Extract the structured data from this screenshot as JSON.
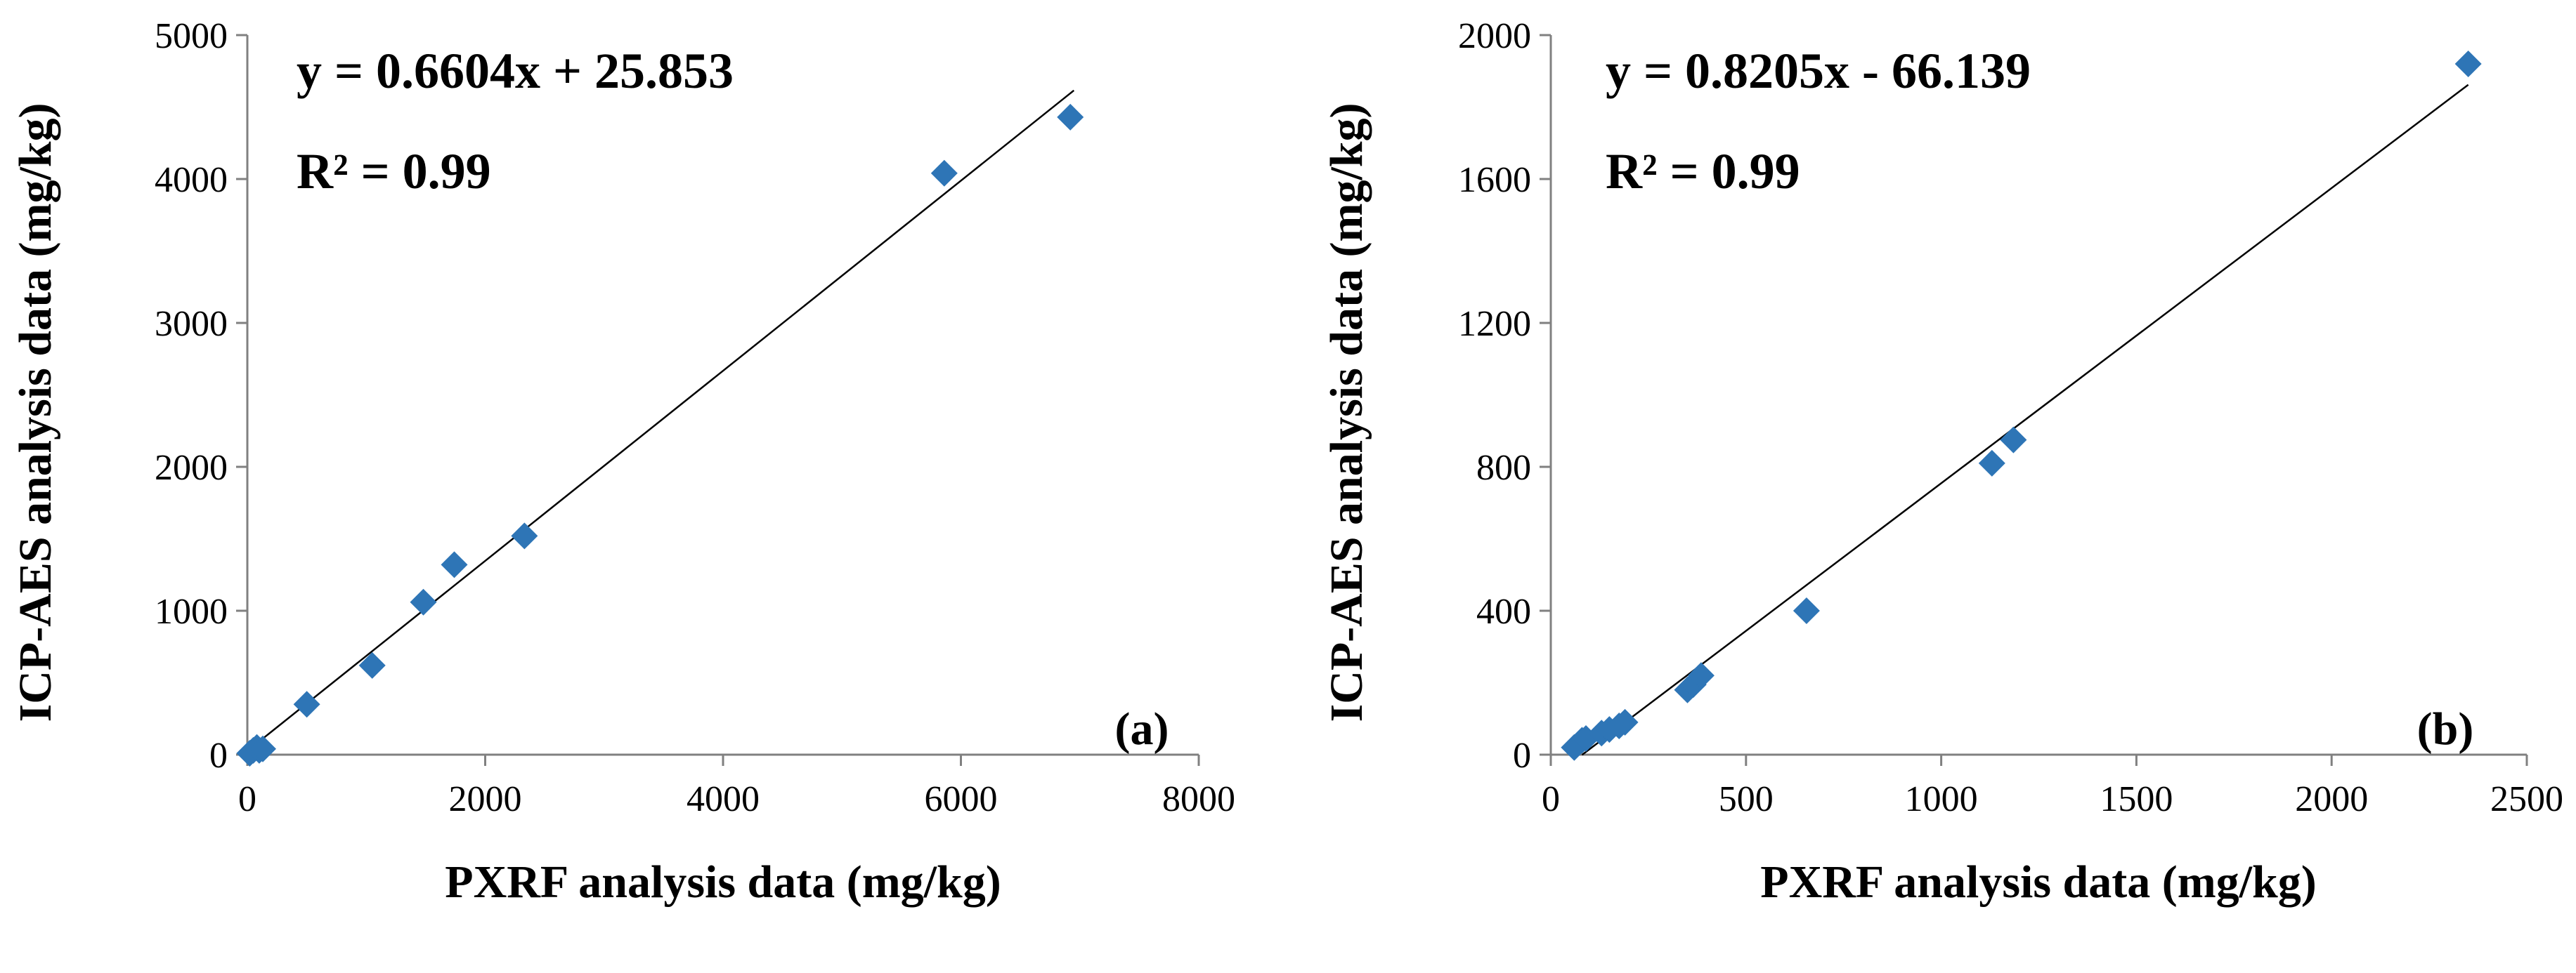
{
  "chart_data": [
    {
      "type": "scatter",
      "panel_label": "(a)",
      "equation": "y = 0.6604x + 25.853",
      "r_squared": "R² = 0.99",
      "xlabel": "PXRF analysis data (mg/kg)",
      "ylabel": "ICP-AES analysis data (mg/kg)",
      "xlim": [
        0,
        8000
      ],
      "ylim": [
        0,
        5000
      ],
      "xticks": [
        0,
        2000,
        4000,
        6000,
        8000
      ],
      "yticks": [
        0,
        1000,
        2000,
        3000,
        4000,
        5000
      ],
      "grid": false,
      "trendline": {
        "slope": 0.6604,
        "intercept": 25.853,
        "x_range": [
          0,
          6950
        ]
      },
      "marker_color": "#2E75B6",
      "points": [
        {
          "x": 20,
          "y": 10
        },
        {
          "x": 50,
          "y": 30
        },
        {
          "x": 80,
          "y": 50
        },
        {
          "x": 100,
          "y": 30
        },
        {
          "x": 130,
          "y": 40
        },
        {
          "x": 500,
          "y": 350
        },
        {
          "x": 1050,
          "y": 620
        },
        {
          "x": 1480,
          "y": 1060
        },
        {
          "x": 1740,
          "y": 1320
        },
        {
          "x": 2330,
          "y": 1520
        },
        {
          "x": 5860,
          "y": 4040
        },
        {
          "x": 6920,
          "y": 4430
        }
      ]
    },
    {
      "type": "scatter",
      "panel_label": "(b)",
      "equation": "y = 0.8205x - 66.139",
      "r_squared": "R² = 0.99",
      "xlabel": "PXRF analysis data (mg/kg)",
      "ylabel": "ICP-AES analysis data (mg/kg)",
      "xlim": [
        0,
        2500
      ],
      "ylim": [
        0,
        2000
      ],
      "xticks": [
        0,
        500,
        1000,
        1500,
        2000,
        2500
      ],
      "yticks": [
        0,
        400,
        800,
        1200,
        1600,
        2000
      ],
      "grid": false,
      "trendline": {
        "slope": 0.8205,
        "intercept": -66.139,
        "x_range": [
          80,
          2350
        ]
      },
      "marker_color": "#2E75B6",
      "points": [
        {
          "x": 60,
          "y": 20
        },
        {
          "x": 80,
          "y": 40
        },
        {
          "x": 90,
          "y": 45
        },
        {
          "x": 130,
          "y": 60
        },
        {
          "x": 150,
          "y": 70
        },
        {
          "x": 175,
          "y": 80
        },
        {
          "x": 190,
          "y": 90
        },
        {
          "x": 350,
          "y": 180
        },
        {
          "x": 365,
          "y": 195
        },
        {
          "x": 385,
          "y": 220
        },
        {
          "x": 655,
          "y": 400
        },
        {
          "x": 1130,
          "y": 810
        },
        {
          "x": 1185,
          "y": 875
        },
        {
          "x": 2350,
          "y": 1920
        }
      ]
    }
  ]
}
